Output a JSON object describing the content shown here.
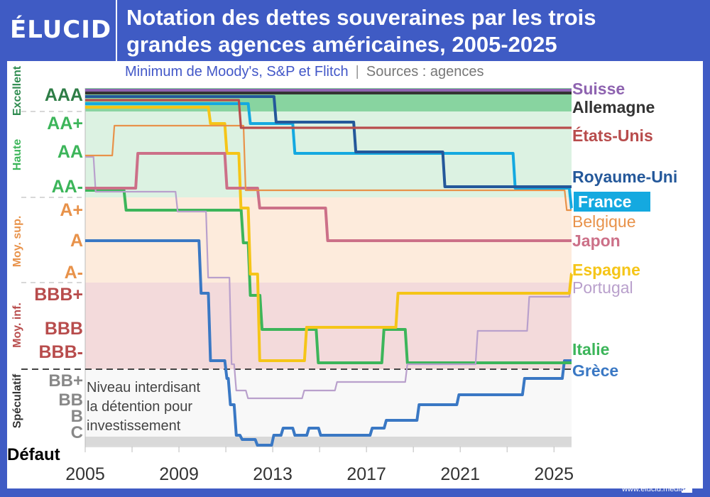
{
  "header": {
    "logo": "ÉLUCID",
    "title_line1": "Notation des dettes souveraines par les trois",
    "title_line2": "grandes agences américaines, 2005-2025"
  },
  "subtitle": {
    "main": "Minimum de Moody's, S&P et Flitch",
    "separator": "|",
    "sources": "Sources : agences"
  },
  "footer": {
    "url": "www.elucid.media"
  },
  "chart_data": {
    "type": "line",
    "step": true,
    "title": "Notation des dettes souveraines par les trois grandes agences américaines, 2005-2025",
    "subtitle": "Minimum de Moody's, S&P et Flitch",
    "xlim": [
      2005,
      2025.75
    ],
    "x_ticks": [
      "2005",
      "2009",
      "2013",
      "2017",
      "2021",
      "2025"
    ],
    "y_ticks": [
      "AAA",
      "AA+",
      "AA",
      "AA-",
      "A+",
      "A",
      "A-",
      "BBB+",
      "BBB",
      "BBB-",
      "BB+",
      "BB",
      "B",
      "C",
      "Défaut"
    ],
    "categories_bands": [
      {
        "label": "Excellent",
        "color": "#88d4a0",
        "text_color": "#2e8b4f"
      },
      {
        "label": "Haute",
        "color": "#dcf2e2",
        "text_color": "#3cb55a"
      },
      {
        "label": "Moy. sup.",
        "color": "#fdebdc",
        "text_color": "#e8924a"
      },
      {
        "label": "Moy. inf.",
        "color": "#f3dadb",
        "text_color": "#b84c4c"
      },
      {
        "label": "Spéculatif",
        "color": "#f8f8f8",
        "text_color": "#333333"
      }
    ],
    "annotation": {
      "lines": [
        "Niveau interdisant",
        "la détention pour",
        "investissement"
      ]
    },
    "series": [
      {
        "name": "Suisse",
        "color": "#8e63b0",
        "points": [
          [
            2005,
            "AAA"
          ]
        ]
      },
      {
        "name": "Allemagne",
        "color": "#333333",
        "points": [
          [
            2005,
            "AAA"
          ]
        ]
      },
      {
        "name": "États-Unis",
        "color": "#b84c4c",
        "points": [
          [
            2005,
            "AAA"
          ],
          [
            2011.6,
            "AA+"
          ]
        ]
      },
      {
        "name": "Royaume-Uni",
        "color": "#24589a",
        "points": [
          [
            2005,
            "AAA"
          ],
          [
            2013.1,
            "AA+"
          ],
          [
            2016.5,
            "AA"
          ],
          [
            2020.3,
            "AA-"
          ]
        ]
      },
      {
        "name": "France",
        "color": "#14a9e0",
        "highlight": true,
        "points": [
          [
            2005,
            "AAA"
          ],
          [
            2012.0,
            "AA+"
          ],
          [
            2013.9,
            "AA"
          ],
          [
            2023.3,
            "AA-"
          ],
          [
            2025.7,
            "A+"
          ]
        ]
      },
      {
        "name": "Belgique",
        "color": "#e8924a",
        "points": [
          [
            2005,
            "AA"
          ],
          [
            2006.2,
            "AA+"
          ],
          [
            2011.8,
            "AA-"
          ],
          [
            2025.5,
            "A+"
          ]
        ]
      },
      {
        "name": "Japon",
        "color": "#cc7088",
        "points": [
          [
            2005,
            "AA-"
          ],
          [
            2007.2,
            "AA"
          ],
          [
            2011.0,
            "AA-"
          ],
          [
            2012.4,
            "A+"
          ],
          [
            2015.3,
            "A"
          ]
        ]
      },
      {
        "name": "Espagne",
        "color": "#f5c518",
        "points": [
          [
            2005,
            "AAA"
          ],
          [
            2010.3,
            "AA+"
          ],
          [
            2011.0,
            "AA"
          ],
          [
            2011.6,
            "A+"
          ],
          [
            2012.0,
            "A-"
          ],
          [
            2012.4,
            "BBB-"
          ],
          [
            2014.4,
            "BBB"
          ],
          [
            2018.3,
            "BBB+"
          ],
          [
            2025.7,
            "A-"
          ]
        ]
      },
      {
        "name": "Portugal",
        "color": "#b9a0cc",
        "points": [
          [
            2005,
            "AA"
          ],
          [
            2005.4,
            "AA-"
          ],
          [
            2008.9,
            "A+"
          ],
          [
            2010.2,
            "A-"
          ],
          [
            2011.2,
            "BBB-"
          ],
          [
            2011.4,
            "BB"
          ],
          [
            2011.9,
            "BB-"
          ],
          [
            2014.3,
            "BB"
          ],
          [
            2015.7,
            "BB+"
          ],
          [
            2018.7,
            "BBB-"
          ],
          [
            2021.7,
            "BBB"
          ],
          [
            2023.9,
            "BBB+"
          ],
          [
            2025.7,
            "A-"
          ]
        ]
      },
      {
        "name": "Italie",
        "color": "#3cb55a",
        "points": [
          [
            2005,
            "AA-"
          ],
          [
            2006.7,
            "A+"
          ],
          [
            2011.7,
            "A"
          ],
          [
            2012.0,
            "BBB+"
          ],
          [
            2012.5,
            "BBB"
          ],
          [
            2014.9,
            "BBB-"
          ],
          [
            2017.7,
            "BBB"
          ],
          [
            2018.7,
            "BBB-"
          ]
        ]
      },
      {
        "name": "Grèce",
        "color": "#3a78c4",
        "points": [
          [
            2005,
            "A"
          ],
          [
            2009.9,
            "BBB+"
          ],
          [
            2010.3,
            "BBB-"
          ],
          [
            2011.0,
            "BB+"
          ],
          [
            2011.15,
            "B+"
          ],
          [
            2011.4,
            "CCC"
          ],
          [
            2011.65,
            "CC"
          ],
          [
            2012.3,
            "SD"
          ],
          [
            2013.0,
            "CCC"
          ],
          [
            2013.4,
            "CCC+"
          ],
          [
            2013.9,
            "CCC"
          ],
          [
            2014.5,
            "CCC+"
          ],
          [
            2015.0,
            "CCC"
          ],
          [
            2017.2,
            "CCC+"
          ],
          [
            2017.8,
            "B-"
          ],
          [
            2019.2,
            "B+"
          ],
          [
            2020.9,
            "BB-"
          ],
          [
            2023.7,
            "BB+"
          ],
          [
            2025.4,
            "BBB-"
          ]
        ]
      }
    ]
  }
}
